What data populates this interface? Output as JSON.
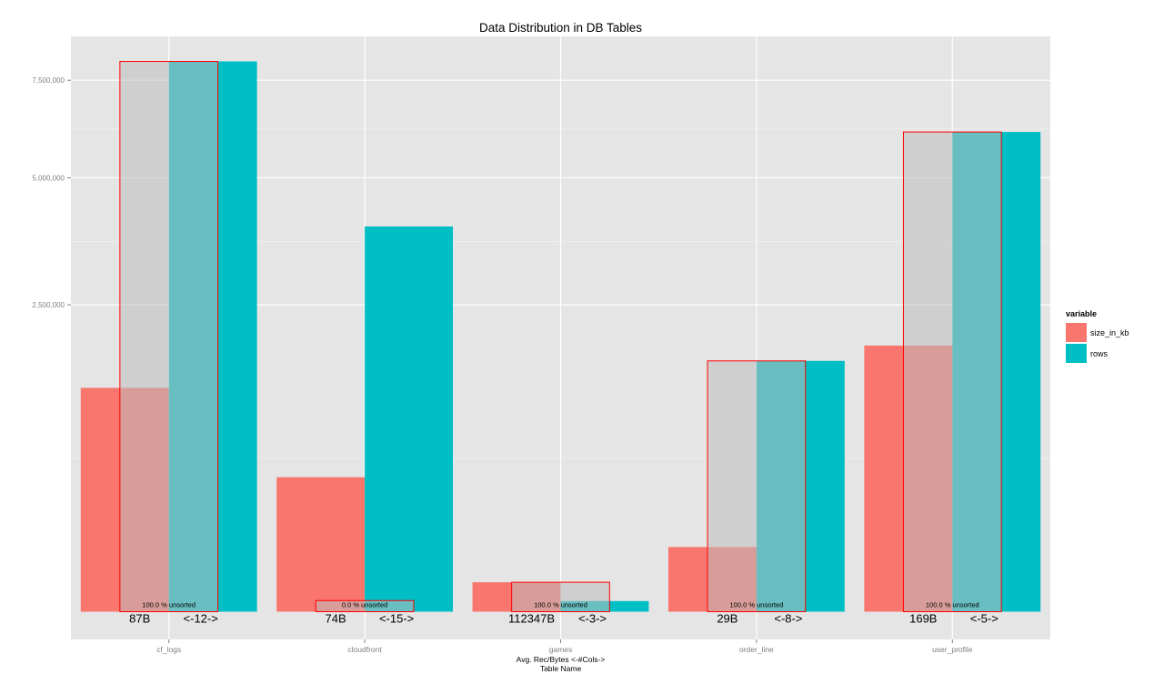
{
  "chart_data": {
    "type": "bar",
    "title": "Data Distribution in DB Tables",
    "xlabel_line1": "Avg. Rec/Bytes    <-#Cols->",
    "xlabel_line2": "Table Name",
    "ylabel": "",
    "categories": [
      "cf_logs",
      "cloudfront",
      "games",
      "order_line",
      "user_profile"
    ],
    "y_tick_values": [
      2500000,
      5000000,
      7500000
    ],
    "y_tick_labels": [
      "2,500,000",
      "5,000,000",
      "7,500,000"
    ],
    "y_scale": "sqrt",
    "ylim": [
      0,
      8650000
    ],
    "grid": true,
    "legend": {
      "title": "variable",
      "placement": "right"
    },
    "series": [
      {
        "name": "size_in_kb",
        "color": "#F8766D",
        "values": [
          1330000,
          480000,
          23000,
          111000,
          1880000
        ]
      },
      {
        "name": "rows",
        "color": "#00BFC4",
        "values": [
          8040000,
          3940000,
          3000,
          1670000,
          6110000
        ]
      }
    ],
    "overlay": {
      "fill": "#bebebe",
      "stroke": "#ff0000",
      "values": [
        8040000,
        3300,
        23000,
        1670000,
        6110000
      ]
    },
    "unsorted_labels": [
      "100.0 % unsorted",
      "0.0 % unsorted",
      "100.0 % unsorted",
      "100.0 % unsorted",
      "100.0 % unsorted"
    ],
    "avg_rec_bytes": [
      "87B",
      "74B",
      "112347B",
      "29B",
      "169B"
    ],
    "num_cols": [
      "<-12->",
      "<-15->",
      "<-3->",
      "<-8->",
      "<-5->"
    ]
  }
}
